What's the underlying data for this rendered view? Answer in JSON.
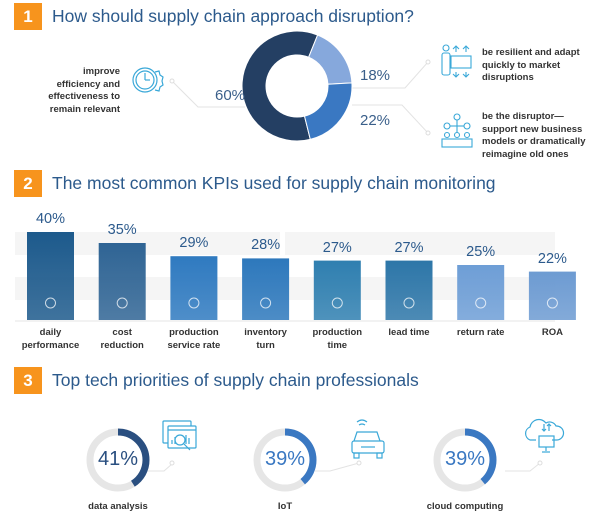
{
  "sections": [
    {
      "number": "1",
      "title": "How should supply chain approach disruption?"
    },
    {
      "number": "2",
      "title": "The most common KPIs used for supply chain monitoring"
    },
    {
      "number": "3",
      "title": "Top tech priorities of supply chain professionals"
    }
  ],
  "colors": {
    "badge": "#f7941d",
    "title": "#2c5a8c",
    "donut": [
      "#243f63",
      "#86a8dc",
      "#3a78c2"
    ],
    "icon": "#3aa8d8"
  },
  "chart_data": [
    {
      "type": "pie",
      "title": "How should supply chain approach disruption?",
      "slices": [
        {
          "label": "improve efficiency and effectiveness to remain relevant",
          "value": 60,
          "display": "60%",
          "icon": "clock-gear-icon"
        },
        {
          "label": "be resilient and adapt quickly to market disruptions",
          "value": 18,
          "display": "18%",
          "icon": "person-adjust-icon"
        },
        {
          "label": "be the disruptor—support new business models or dramatically reimagine old ones",
          "value": 22,
          "display": "22%",
          "icon": "team-network-icon"
        }
      ],
      "donut": true
    },
    {
      "type": "bar",
      "title": "The most common KPIs used for supply chain monitoring",
      "categories": [
        "daily performance",
        "cost reduction",
        "production service rate",
        "inventory turn",
        "production time",
        "lead time",
        "return rate",
        "ROA"
      ],
      "label_lines": [
        [
          "daily",
          "performance"
        ],
        [
          "cost",
          "reduction"
        ],
        [
          "production",
          "service rate"
        ],
        [
          "inventory",
          "turn"
        ],
        [
          "production",
          "time"
        ],
        [
          "lead time"
        ],
        [
          "return rate"
        ],
        [
          "ROA"
        ]
      ],
      "values": [
        40,
        35,
        29,
        28,
        27,
        27,
        25,
        22
      ],
      "value_labels": [
        "40%",
        "35%",
        "29%",
        "28%",
        "27%",
        "27%",
        "25%",
        "22%"
      ],
      "icons": [
        "speedometer-gear-icon",
        "piggy-bank-icon",
        "growth-bars-icon",
        "flowchart-icon",
        "gear-conveyor-icon",
        "stopwatch-icon",
        "coin-cycle-icon",
        "money-network-icon"
      ],
      "bar_colors": [
        "#1d5a8c",
        "#2f6494",
        "#2f7ac0",
        "#2d78bc",
        "#2f7fb0",
        "#2d76a8",
        "#6e9ed6",
        "#6d9bd2"
      ],
      "ylim": [
        0,
        40
      ],
      "grid": "alternating bands"
    },
    {
      "type": "pie",
      "title": "Top tech priorities of supply chain professionals",
      "items": [
        {
          "label": "data analysis",
          "value": 41,
          "display": "41%",
          "color": "#2a4f80",
          "icon": "data-analysis-icon"
        },
        {
          "label": "IoT",
          "value": 39,
          "display": "39%",
          "color": "#3a78c2",
          "icon": "connected-car-icon"
        },
        {
          "label": "cloud computing",
          "value": 39,
          "display": "39%",
          "color": "#3a78c2",
          "icon": "cloud-computer-icon"
        }
      ],
      "ring": true
    }
  ]
}
